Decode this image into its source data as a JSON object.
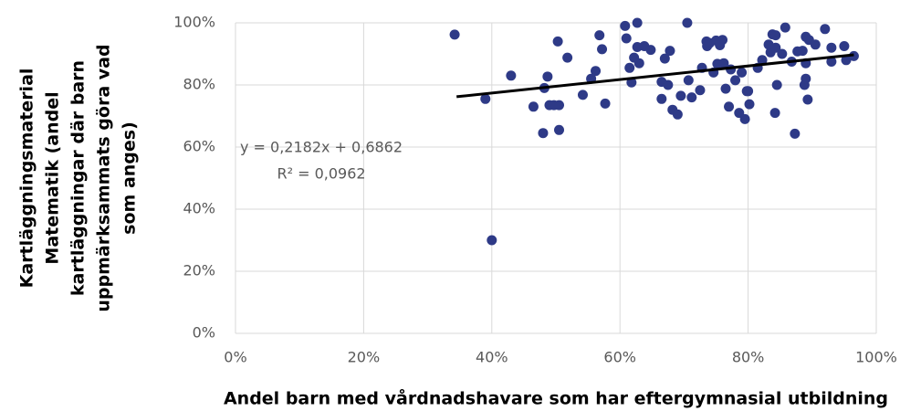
{
  "chart_data": {
    "type": "scatter",
    "ylabel": [
      "Kartläggningsmaterial",
      "Matematik (andel",
      "kartläggningar där barn",
      "uppmärksammats göra vad",
      "som anges)"
    ],
    "xlabel": "Andel barn med vårdnadshavare som har eftergymnasial utbildning",
    "annotation": [
      "y = 0,2182x + 0,6862",
      "R² = 0,0962"
    ],
    "color": "#2e3a87",
    "trendline": {
      "color": "#000000",
      "x": [
        34.5,
        96.5
      ],
      "y": [
        76.2,
        89.7
      ]
    },
    "x": [
      34.2,
      39,
      40,
      43,
      46.5,
      48,
      48.2,
      48.7,
      49,
      49.7,
      50.3,
      50.5,
      50.5,
      51.8,
      54.2,
      55.5,
      56.2,
      56.8,
      57.2,
      57.7,
      60.8,
      61,
      61.5,
      61.8,
      62.2,
      62.7,
      62.7,
      63,
      63.8,
      64.8,
      66.5,
      66.5,
      67,
      67.5,
      67.8,
      68.2,
      69,
      69.5,
      70.5,
      70.7,
      71.2,
      72.5,
      72.8,
      73.5,
      73.6,
      74,
      74.6,
      75,
      75.2,
      75.6,
      76,
      76.2,
      76.5,
      77,
      77.3,
      78,
      78.6,
      79,
      79.5,
      79.8,
      80.2,
      80,
      81.5,
      82.2,
      83.2,
      83.5,
      83.8,
      84.2,
      84.3,
      84.5,
      84.3,
      85.3,
      85.8,
      86.8,
      87.3,
      87.7,
      88.5,
      88.8,
      89,
      89,
      89,
      89.3,
      89.5,
      90.5,
      92,
      93,
      93,
      95,
      95.3,
      96.5
    ],
    "values": [
      96.2,
      75.5,
      30,
      83,
      73,
      64.5,
      79,
      82.7,
      73.5,
      73.5,
      94,
      73.5,
      65.5,
      88.8,
      76.8,
      82,
      84.5,
      96,
      91.5,
      74,
      99,
      95,
      85.5,
      80.8,
      88.8,
      100,
      92.2,
      87,
      92.5,
      91.3,
      81,
      75.5,
      88.5,
      80,
      91,
      72,
      70.5,
      76.5,
      100,
      81.5,
      76,
      78.3,
      85.5,
      94,
      92.5,
      93.5,
      84,
      94.3,
      86.8,
      92.8,
      94.5,
      87,
      78.8,
      73,
      85,
      81.5,
      71,
      84,
      69,
      78,
      73.8,
      78,
      85.5,
      88,
      93,
      90.5,
      96.3,
      71,
      96,
      80,
      92,
      90,
      98.5,
      87.5,
      64.3,
      90.8,
      91,
      80,
      95.5,
      82,
      87,
      75.3,
      94.5,
      93,
      98,
      92,
      87.5,
      92.5,
      88,
      89.3
    ],
    "xlim": [
      0,
      100
    ],
    "xticks": [
      {
        "value": 0,
        "label": "0%"
      },
      {
        "value": 20,
        "label": "20%"
      },
      {
        "value": 40,
        "label": "40%"
      },
      {
        "value": 60,
        "label": "60%"
      },
      {
        "value": 80,
        "label": "80%"
      },
      {
        "value": 100,
        "label": "100%"
      }
    ],
    "ylim": [
      0,
      100
    ],
    "yticks": [
      {
        "value": 0,
        "label": "0%"
      },
      {
        "value": 20,
        "label": "20%"
      },
      {
        "value": 40,
        "label": "40%"
      },
      {
        "value": 60,
        "label": "60%"
      },
      {
        "value": 80,
        "label": "80%"
      },
      {
        "value": 100,
        "label": "100%"
      }
    ],
    "grid": true
  }
}
